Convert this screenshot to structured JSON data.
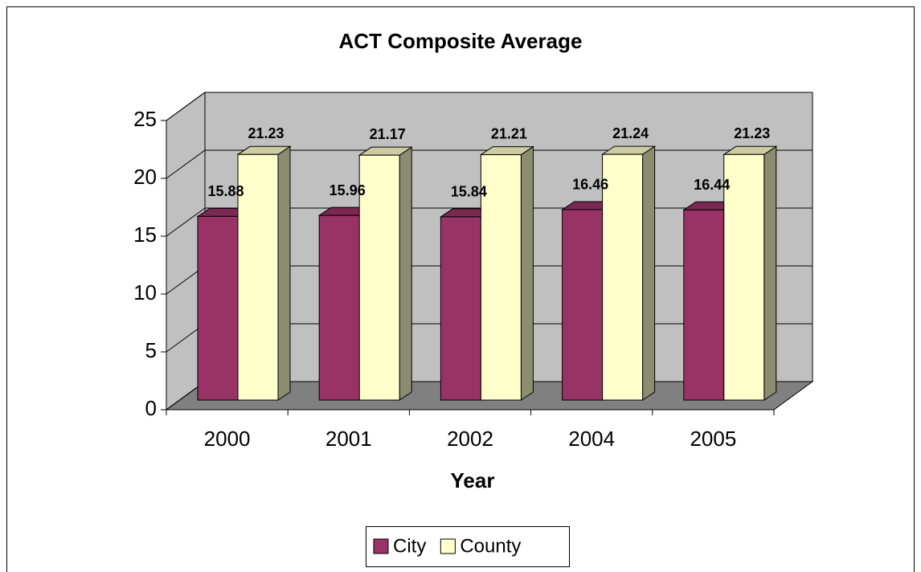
{
  "chart_data": {
    "type": "bar3d",
    "title": "ACT Composite Average",
    "x_label": "Year",
    "categories": [
      "2000",
      "2001",
      "2002",
      "2004",
      "2005"
    ],
    "series": [
      {
        "name": "City",
        "color": "#993366",
        "values": [
          15.88,
          15.96,
          15.84,
          16.46,
          16.44
        ]
      },
      {
        "name": "County",
        "color": "#ffffcc",
        "values": [
          21.23,
          21.17,
          21.21,
          21.24,
          21.23
        ]
      }
    ],
    "ylim": [
      0,
      25
    ],
    "yticks": [
      0,
      5,
      10,
      15,
      20,
      25
    ],
    "grid": true,
    "legend": "bottom"
  }
}
